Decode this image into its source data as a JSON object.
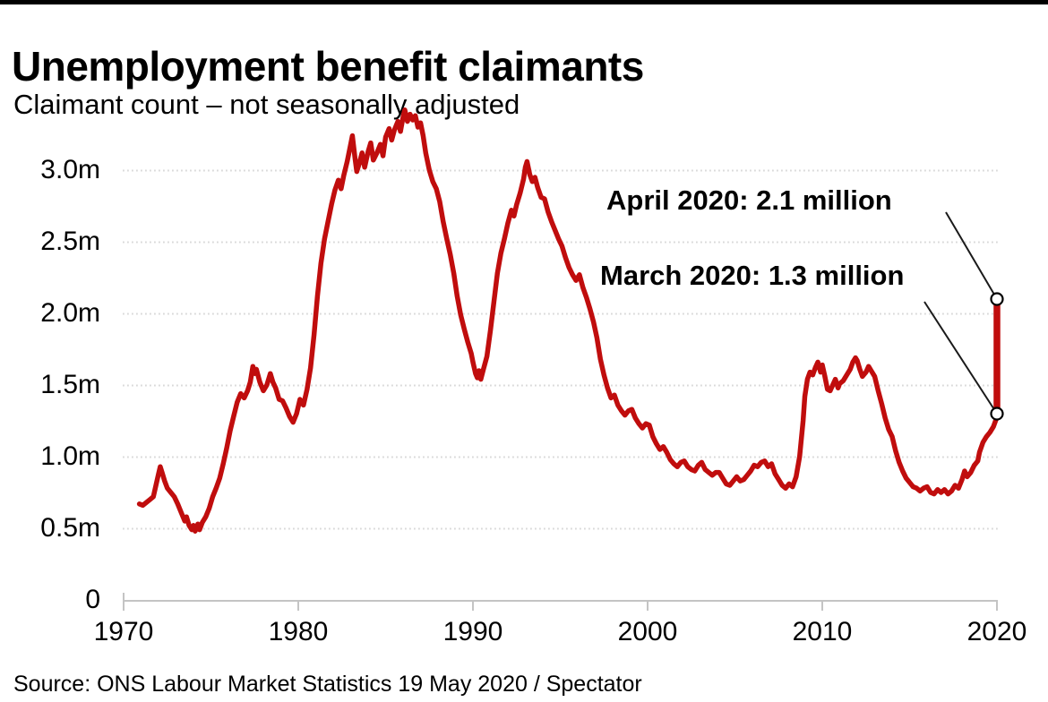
{
  "header": {
    "title": "Unemployment benefit claimants",
    "subtitle": "Claimant count – not seasonally adjusted"
  },
  "footer": {
    "source": "Source: ONS Labour Market Statistics 19 May 2020 / Spectator"
  },
  "chart_data": {
    "type": "line",
    "title": "Unemployment benefit claimants",
    "subtitle": "Claimant count – not seasonally adjusted",
    "units": "millions of claimants",
    "grid": "horizontal-dotted",
    "line_color": "#c00d0d",
    "x_axis": {
      "range": [
        1969.9,
        2021
      ],
      "ticks": [
        {
          "label": "1970",
          "value": 1970
        },
        {
          "label": "1980",
          "value": 1980
        },
        {
          "label": "1990",
          "value": 1990
        },
        {
          "label": "2000",
          "value": 2000
        },
        {
          "label": "2010",
          "value": 2010
        },
        {
          "label": "2020",
          "value": 2020
        }
      ]
    },
    "y_axis": {
      "range": [
        0,
        3.5
      ],
      "ticks": [
        {
          "label": "3.0m",
          "value": 3.0
        },
        {
          "label": "2.5m",
          "value": 2.5
        },
        {
          "label": "2.0m",
          "value": 2.0
        },
        {
          "label": "1.5m",
          "value": 1.5
        },
        {
          "label": "1.0m",
          "value": 1.0
        },
        {
          "label": "0.5m",
          "value": 0.5
        },
        {
          "label": "0",
          "value": 0
        }
      ]
    },
    "series": [
      {
        "name": "Claimant count (not seasonally adjusted)",
        "color": "#c00d0d",
        "points": [
          [
            1970.9,
            0.67
          ],
          [
            1971.1,
            0.66
          ],
          [
            1971.3,
            0.68
          ],
          [
            1971.5,
            0.7
          ],
          [
            1971.7,
            0.72
          ],
          [
            1971.85,
            0.8
          ],
          [
            1972.0,
            0.88
          ],
          [
            1972.1,
            0.93
          ],
          [
            1972.2,
            0.89
          ],
          [
            1972.35,
            0.83
          ],
          [
            1972.5,
            0.78
          ],
          [
            1972.7,
            0.75
          ],
          [
            1972.9,
            0.72
          ],
          [
            1973.1,
            0.67
          ],
          [
            1973.3,
            0.61
          ],
          [
            1973.5,
            0.55
          ],
          [
            1973.6,
            0.58
          ],
          [
            1973.75,
            0.52
          ],
          [
            1973.9,
            0.49
          ],
          [
            1974.0,
            0.52
          ],
          [
            1974.1,
            0.48
          ],
          [
            1974.25,
            0.53
          ],
          [
            1974.35,
            0.49
          ],
          [
            1974.5,
            0.54
          ],
          [
            1974.7,
            0.58
          ],
          [
            1974.9,
            0.64
          ],
          [
            1975.1,
            0.72
          ],
          [
            1975.3,
            0.78
          ],
          [
            1975.5,
            0.85
          ],
          [
            1975.7,
            0.95
          ],
          [
            1975.9,
            1.06
          ],
          [
            1976.1,
            1.18
          ],
          [
            1976.3,
            1.28
          ],
          [
            1976.5,
            1.38
          ],
          [
            1976.7,
            1.44
          ],
          [
            1976.9,
            1.41
          ],
          [
            1977.1,
            1.46
          ],
          [
            1977.25,
            1.52
          ],
          [
            1977.4,
            1.63
          ],
          [
            1977.5,
            1.58
          ],
          [
            1977.6,
            1.61
          ],
          [
            1977.8,
            1.52
          ],
          [
            1978.0,
            1.46
          ],
          [
            1978.2,
            1.5
          ],
          [
            1978.4,
            1.58
          ],
          [
            1978.55,
            1.52
          ],
          [
            1978.7,
            1.48
          ],
          [
            1978.9,
            1.4
          ],
          [
            1979.1,
            1.39
          ],
          [
            1979.3,
            1.34
          ],
          [
            1979.5,
            1.28
          ],
          [
            1979.7,
            1.24
          ],
          [
            1979.9,
            1.3
          ],
          [
            1980.1,
            1.4
          ],
          [
            1980.3,
            1.36
          ],
          [
            1980.5,
            1.47
          ],
          [
            1980.7,
            1.62
          ],
          [
            1980.9,
            1.85
          ],
          [
            1981.1,
            2.12
          ],
          [
            1981.3,
            2.35
          ],
          [
            1981.5,
            2.52
          ],
          [
            1981.7,
            2.64
          ],
          [
            1981.9,
            2.76
          ],
          [
            1982.1,
            2.86
          ],
          [
            1982.3,
            2.93
          ],
          [
            1982.45,
            2.87
          ],
          [
            1982.6,
            2.96
          ],
          [
            1982.8,
            3.06
          ],
          [
            1983.0,
            3.18
          ],
          [
            1983.1,
            3.24
          ],
          [
            1983.25,
            3.08
          ],
          [
            1983.35,
            2.99
          ],
          [
            1983.5,
            3.05
          ],
          [
            1983.65,
            3.12
          ],
          [
            1983.8,
            3.02
          ],
          [
            1984.0,
            3.13
          ],
          [
            1984.15,
            3.19
          ],
          [
            1984.3,
            3.07
          ],
          [
            1984.5,
            3.12
          ],
          [
            1984.7,
            3.18
          ],
          [
            1984.85,
            3.1
          ],
          [
            1985.0,
            3.23
          ],
          [
            1985.2,
            3.29
          ],
          [
            1985.35,
            3.21
          ],
          [
            1985.5,
            3.28
          ],
          [
            1985.7,
            3.34
          ],
          [
            1985.85,
            3.27
          ],
          [
            1986.0,
            3.37
          ],
          [
            1986.1,
            3.42
          ],
          [
            1986.25,
            3.34
          ],
          [
            1986.4,
            3.39
          ],
          [
            1986.55,
            3.35
          ],
          [
            1986.7,
            3.38
          ],
          [
            1986.85,
            3.3
          ],
          [
            1987.0,
            3.33
          ],
          [
            1987.15,
            3.24
          ],
          [
            1987.3,
            3.12
          ],
          [
            1987.5,
            3.0
          ],
          [
            1987.7,
            2.92
          ],
          [
            1987.9,
            2.87
          ],
          [
            1988.1,
            2.78
          ],
          [
            1988.3,
            2.64
          ],
          [
            1988.5,
            2.52
          ],
          [
            1988.7,
            2.41
          ],
          [
            1988.9,
            2.28
          ],
          [
            1989.1,
            2.12
          ],
          [
            1989.3,
            1.99
          ],
          [
            1989.5,
            1.89
          ],
          [
            1989.7,
            1.8
          ],
          [
            1989.9,
            1.72
          ],
          [
            1990.0,
            1.66
          ],
          [
            1990.15,
            1.58
          ],
          [
            1990.25,
            1.55
          ],
          [
            1990.35,
            1.6
          ],
          [
            1990.45,
            1.54
          ],
          [
            1990.6,
            1.61
          ],
          [
            1990.8,
            1.7
          ],
          [
            1991.0,
            1.88
          ],
          [
            1991.2,
            2.08
          ],
          [
            1991.4,
            2.28
          ],
          [
            1991.6,
            2.42
          ],
          [
            1991.8,
            2.52
          ],
          [
            1992.0,
            2.63
          ],
          [
            1992.2,
            2.72
          ],
          [
            1992.35,
            2.68
          ],
          [
            1992.5,
            2.76
          ],
          [
            1992.7,
            2.84
          ],
          [
            1992.9,
            2.94
          ],
          [
            1993.0,
            3.02
          ],
          [
            1993.1,
            3.06
          ],
          [
            1993.25,
            2.97
          ],
          [
            1993.4,
            2.92
          ],
          [
            1993.55,
            2.95
          ],
          [
            1993.7,
            2.88
          ],
          [
            1993.9,
            2.81
          ],
          [
            1994.1,
            2.8
          ],
          [
            1994.3,
            2.71
          ],
          [
            1994.5,
            2.64
          ],
          [
            1994.7,
            2.58
          ],
          [
            1994.9,
            2.52
          ],
          [
            1995.1,
            2.47
          ],
          [
            1995.3,
            2.39
          ],
          [
            1995.5,
            2.32
          ],
          [
            1995.7,
            2.27
          ],
          [
            1995.9,
            2.23
          ],
          [
            1996.1,
            2.27
          ],
          [
            1996.3,
            2.18
          ],
          [
            1996.5,
            2.11
          ],
          [
            1996.7,
            2.03
          ],
          [
            1996.9,
            1.94
          ],
          [
            1997.1,
            1.83
          ],
          [
            1997.3,
            1.68
          ],
          [
            1997.5,
            1.57
          ],
          [
            1997.7,
            1.48
          ],
          [
            1997.9,
            1.41
          ],
          [
            1998.1,
            1.43
          ],
          [
            1998.3,
            1.36
          ],
          [
            1998.5,
            1.32
          ],
          [
            1998.7,
            1.29
          ],
          [
            1998.9,
            1.32
          ],
          [
            1999.1,
            1.33
          ],
          [
            1999.3,
            1.27
          ],
          [
            1999.5,
            1.23
          ],
          [
            1999.7,
            1.2
          ],
          [
            1999.9,
            1.23
          ],
          [
            2000.1,
            1.22
          ],
          [
            2000.3,
            1.14
          ],
          [
            2000.5,
            1.09
          ],
          [
            2000.7,
            1.05
          ],
          [
            2000.9,
            1.07
          ],
          [
            2001.1,
            1.03
          ],
          [
            2001.3,
            0.98
          ],
          [
            2001.5,
            0.95
          ],
          [
            2001.7,
            0.93
          ],
          [
            2001.9,
            0.96
          ],
          [
            2002.1,
            0.97
          ],
          [
            2002.3,
            0.93
          ],
          [
            2002.5,
            0.91
          ],
          [
            2002.7,
            0.9
          ],
          [
            2002.9,
            0.94
          ],
          [
            2003.1,
            0.96
          ],
          [
            2003.3,
            0.91
          ],
          [
            2003.5,
            0.89
          ],
          [
            2003.7,
            0.87
          ],
          [
            2003.9,
            0.89
          ],
          [
            2004.1,
            0.89
          ],
          [
            2004.3,
            0.85
          ],
          [
            2004.5,
            0.81
          ],
          [
            2004.7,
            0.8
          ],
          [
            2004.9,
            0.83
          ],
          [
            2005.1,
            0.86
          ],
          [
            2005.3,
            0.83
          ],
          [
            2005.5,
            0.84
          ],
          [
            2005.7,
            0.87
          ],
          [
            2005.9,
            0.9
          ],
          [
            2006.1,
            0.94
          ],
          [
            2006.3,
            0.93
          ],
          [
            2006.5,
            0.96
          ],
          [
            2006.7,
            0.97
          ],
          [
            2006.9,
            0.93
          ],
          [
            2007.1,
            0.95
          ],
          [
            2007.3,
            0.88
          ],
          [
            2007.5,
            0.84
          ],
          [
            2007.7,
            0.8
          ],
          [
            2007.9,
            0.78
          ],
          [
            2008.1,
            0.81
          ],
          [
            2008.3,
            0.79
          ],
          [
            2008.5,
            0.86
          ],
          [
            2008.7,
            1.0
          ],
          [
            2008.9,
            1.25
          ],
          [
            2009.0,
            1.42
          ],
          [
            2009.15,
            1.54
          ],
          [
            2009.3,
            1.59
          ],
          [
            2009.45,
            1.57
          ],
          [
            2009.6,
            1.62
          ],
          [
            2009.75,
            1.66
          ],
          [
            2009.9,
            1.59
          ],
          [
            2010.0,
            1.64
          ],
          [
            2010.15,
            1.56
          ],
          [
            2010.3,
            1.47
          ],
          [
            2010.45,
            1.46
          ],
          [
            2010.6,
            1.5
          ],
          [
            2010.75,
            1.54
          ],
          [
            2010.9,
            1.48
          ],
          [
            2011.0,
            1.51
          ],
          [
            2011.2,
            1.53
          ],
          [
            2011.4,
            1.57
          ],
          [
            2011.6,
            1.61
          ],
          [
            2011.75,
            1.66
          ],
          [
            2011.9,
            1.69
          ],
          [
            2012.0,
            1.67
          ],
          [
            2012.15,
            1.61
          ],
          [
            2012.3,
            1.56
          ],
          [
            2012.5,
            1.59
          ],
          [
            2012.65,
            1.63
          ],
          [
            2012.8,
            1.6
          ],
          [
            2013.0,
            1.56
          ],
          [
            2013.2,
            1.46
          ],
          [
            2013.4,
            1.37
          ],
          [
            2013.6,
            1.27
          ],
          [
            2013.8,
            1.19
          ],
          [
            2014.0,
            1.14
          ],
          [
            2014.2,
            1.04
          ],
          [
            2014.4,
            0.96
          ],
          [
            2014.6,
            0.9
          ],
          [
            2014.8,
            0.85
          ],
          [
            2015.0,
            0.82
          ],
          [
            2015.2,
            0.79
          ],
          [
            2015.4,
            0.78
          ],
          [
            2015.6,
            0.76
          ],
          [
            2015.8,
            0.78
          ],
          [
            2016.0,
            0.79
          ],
          [
            2016.2,
            0.75
          ],
          [
            2016.4,
            0.74
          ],
          [
            2016.6,
            0.77
          ],
          [
            2016.8,
            0.75
          ],
          [
            2017.0,
            0.77
          ],
          [
            2017.2,
            0.74
          ],
          [
            2017.4,
            0.76
          ],
          [
            2017.6,
            0.8
          ],
          [
            2017.8,
            0.78
          ],
          [
            2018.0,
            0.84
          ],
          [
            2018.15,
            0.9
          ],
          [
            2018.3,
            0.86
          ],
          [
            2018.5,
            0.89
          ],
          [
            2018.7,
            0.94
          ],
          [
            2018.9,
            0.97
          ],
          [
            2019.0,
            1.03
          ],
          [
            2019.2,
            1.1
          ],
          [
            2019.4,
            1.14
          ],
          [
            2019.6,
            1.17
          ],
          [
            2019.8,
            1.21
          ],
          [
            2019.95,
            1.26
          ],
          [
            2020.0,
            1.3
          ]
        ]
      }
    ],
    "spike": {
      "year": 2020.0,
      "from_value": 1.3,
      "to_value": 2.1
    },
    "annotations": [
      {
        "id": "april-2020",
        "label": "April 2020: 2.1 million",
        "year": 2020.0,
        "value_millions": 2.1
      },
      {
        "id": "march-2020",
        "label": "March 2020: 1.3 million",
        "year": 2020.0,
        "value_millions": 1.3
      }
    ],
    "source": "Source: ONS Labour Market Statistics 19 May 2020 / Spectator"
  }
}
